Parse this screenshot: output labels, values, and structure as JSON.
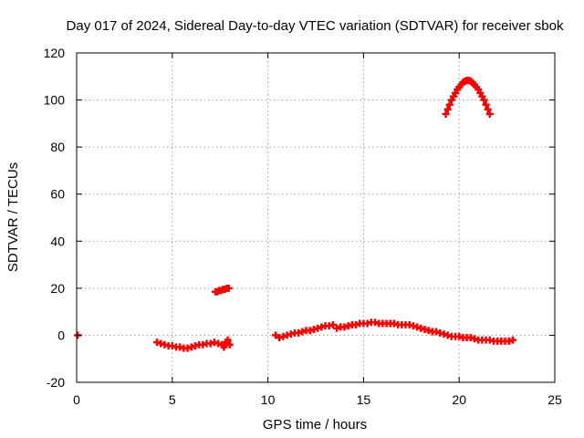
{
  "chart_data": {
    "type": "scatter",
    "title": "Day 017 of 2024, Sidereal Day-to-day VTEC variation (SDTVAR) for receiver sbok",
    "xlabel": "GPS time / hours",
    "ylabel": "SDTVAR / TECUs",
    "xlim": [
      0,
      25
    ],
    "ylim": [
      -20,
      120
    ],
    "x_ticks": [
      0,
      5,
      10,
      15,
      20,
      25
    ],
    "y_ticks": [
      -20,
      0,
      20,
      40,
      60,
      80,
      100,
      120
    ],
    "grid": true,
    "marker": "+",
    "series": [
      {
        "name": "SDTVAR",
        "color": "#ff0000",
        "x": [
          0.05,
          4.2,
          4.4,
          4.6,
          4.8,
          5.0,
          5.2,
          5.4,
          5.6,
          5.8,
          6.0,
          6.2,
          6.4,
          6.6,
          6.8,
          7.0,
          7.2,
          7.4,
          7.6,
          7.7,
          7.8,
          7.9,
          8.0,
          7.25,
          7.35,
          7.45,
          7.55,
          7.65,
          7.75,
          7.85,
          7.95,
          10.4,
          10.6,
          10.8,
          11.0,
          11.2,
          11.4,
          11.6,
          11.8,
          12.0,
          12.2,
          12.4,
          12.6,
          12.8,
          13.0,
          13.2,
          13.4,
          13.6,
          13.8,
          14.0,
          14.2,
          14.4,
          14.6,
          14.8,
          15.0,
          15.2,
          15.4,
          15.6,
          15.8,
          16.0,
          16.2,
          16.4,
          16.6,
          16.8,
          17.0,
          17.2,
          17.4,
          17.6,
          17.8,
          18.0,
          18.2,
          18.4,
          18.6,
          18.8,
          19.0,
          19.2,
          19.4,
          19.6,
          19.8,
          20.0,
          20.2,
          20.4,
          20.6,
          20.8,
          21.0,
          21.2,
          21.4,
          21.6,
          21.8,
          22.0,
          22.2,
          22.4,
          22.6,
          22.8,
          19.3,
          19.4,
          19.5,
          19.6,
          19.7,
          19.8,
          19.9,
          20.0,
          20.1,
          20.2,
          20.3,
          20.4,
          20.5,
          20.6,
          20.7,
          20.8,
          20.9,
          21.0,
          21.1,
          21.2,
          21.3,
          21.4,
          21.5,
          21.6
        ],
        "y": [
          0,
          -3,
          -3.5,
          -4,
          -4.5,
          -4.5,
          -5,
          -5,
          -5.5,
          -5.5,
          -5,
          -4.5,
          -4,
          -4,
          -3.5,
          -3.5,
          -3,
          -3.5,
          -4,
          -5,
          -3,
          -2,
          -4,
          18.5,
          18.5,
          19,
          19,
          19.5,
          19.5,
          20,
          20,
          0,
          -1,
          -0.5,
          0,
          0.5,
          1,
          1,
          1.5,
          2,
          2,
          2.5,
          3,
          3.5,
          4,
          4,
          4.5,
          3,
          3.5,
          3.5,
          4,
          4.5,
          4.5,
          5,
          5,
          5,
          5.5,
          5.5,
          5,
          5,
          5,
          5,
          5,
          4.5,
          4.5,
          4.5,
          4.5,
          4,
          3.5,
          3,
          2.5,
          2,
          1.5,
          1.5,
          1,
          0.5,
          0,
          -0.5,
          -0.5,
          -0.5,
          -1,
          -1,
          -1,
          -1.5,
          -2,
          -2,
          -2,
          -2,
          -2.5,
          -2.5,
          -2.5,
          -2.5,
          -2.5,
          -2,
          94,
          96,
          98,
          100,
          101.5,
          103,
          104.5,
          105.5,
          106.5,
          107.5,
          108,
          108.3,
          108.3,
          108,
          107.3,
          106.5,
          105.5,
          104.5,
          103,
          101.5,
          100,
          98,
          96,
          94
        ]
      }
    ]
  }
}
